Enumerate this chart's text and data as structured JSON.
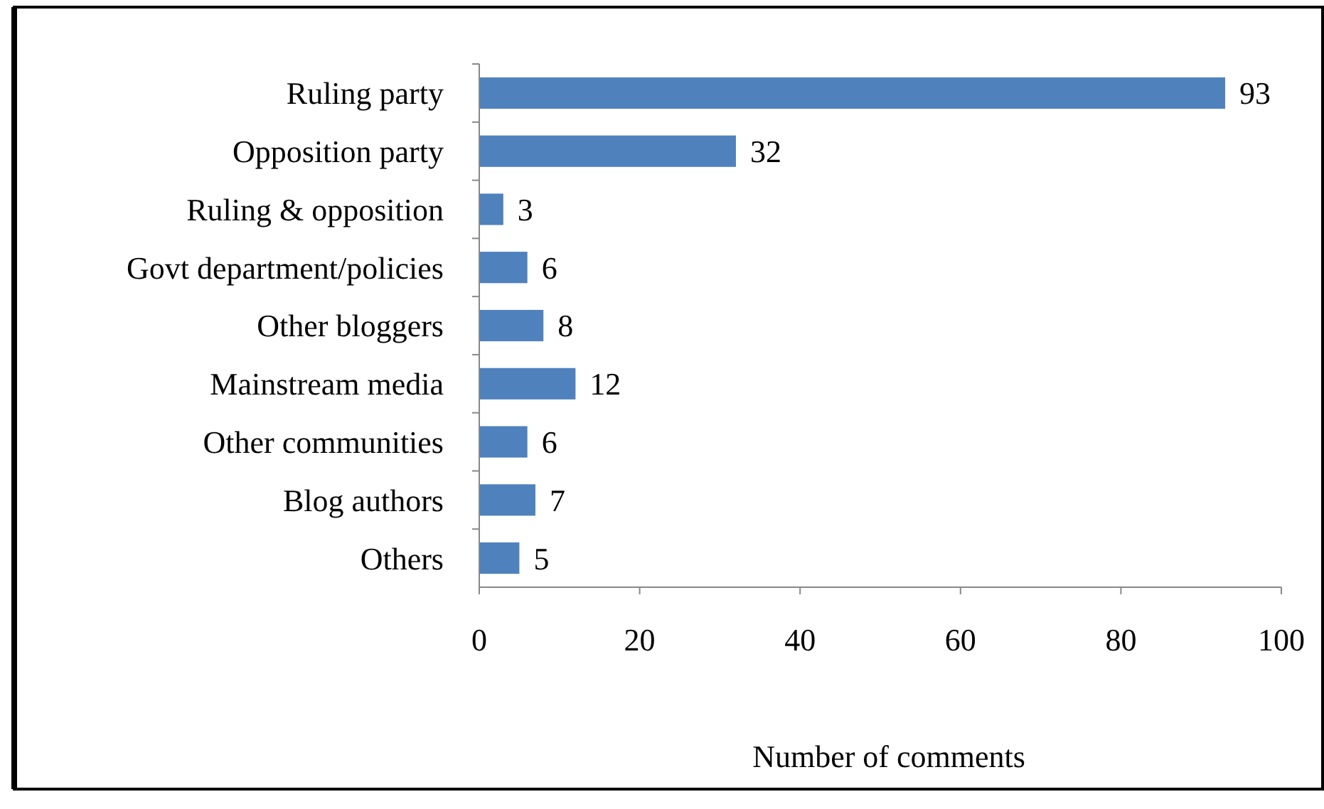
{
  "chart_data": {
    "type": "bar",
    "orientation": "horizontal",
    "xlabel": "Number of comments",
    "categories": [
      "Ruling party",
      "Opposition party",
      "Ruling & opposition",
      "Govt department/policies",
      "Other bloggers",
      "Mainstream media",
      "Other communities",
      "Blog authors",
      "Others"
    ],
    "values": [
      93,
      32,
      3,
      6,
      8,
      12,
      6,
      7,
      5
    ],
    "color": "#4f81bd",
    "xlim": [
      0,
      100
    ],
    "xticks": [
      0,
      20,
      40,
      60,
      80,
      100
    ],
    "data_labels": true
  }
}
